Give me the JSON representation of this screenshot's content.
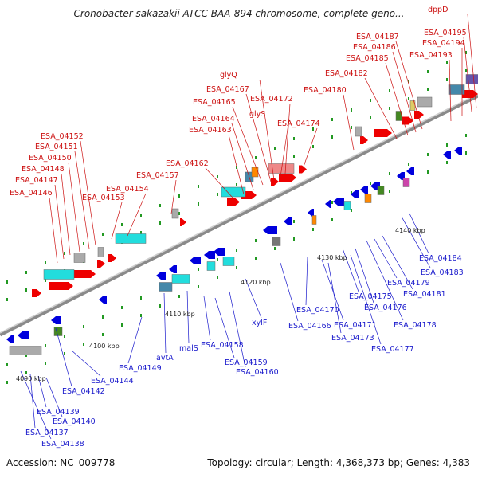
{
  "title": "Cronobacter sakazakii ATCC BAA-894 chromosome, complete geno...",
  "accession_text": "Accession: NC_009778",
  "summary_text": "Topology: circular; Length: 4,368,373 bp; Genes: 4,383",
  "colors": {
    "label_top": "#cc1111",
    "label_bottom": "#1a1acc",
    "backbone": "#8a8a8a",
    "gene_red": "#ee0000",
    "gene_blue": "#0000dd",
    "gene_cyan": "#22dddd",
    "gene_teal": "#4488aa",
    "gene_grey": "#aaaaaa",
    "gene_pink": "#ee8888",
    "gene_orange": "#ff8800",
    "gene_green": "#448822",
    "gene_purple": "#6655aa",
    "dot_green": "#229922"
  },
  "scale_ticks": [
    "4090 kbp",
    "4100 kbp",
    "4110 kbp",
    "4120 kbp",
    "4130 kbp",
    "4140 kbp"
  ],
  "top_labels": [
    "ESA_04146",
    "ESA_04147",
    "ESA_04148",
    "ESA_04150",
    "ESA_04151",
    "ESA_04152",
    "ESA_04153",
    "ESA_04154",
    "ESA_04157",
    "ESA_04162",
    "ESA_04163",
    "ESA_04164",
    "ESA_04165",
    "ESA_04167",
    "glyQ",
    "glyS",
    "ESA_04172",
    "ESA_04174",
    "ESA_04180",
    "ESA_04182",
    "ESA_04185",
    "ESA_04186",
    "ESA_04187",
    "ESA_04193",
    "ESA_04194",
    "ESA_04195",
    "dppD"
  ],
  "bottom_labels": [
    "ESA_04137",
    "ESA_04138",
    "ESA_04139",
    "ESA_04140",
    "ESA_04142",
    "ESA_04144",
    "ESA_04149",
    "avtA",
    "malS",
    "ESA_04158",
    "ESA_04159",
    "ESA_04160",
    "xylF",
    "ESA_04166",
    "ESA_04170",
    "ESA_04171",
    "ESA_04173",
    "ESA_04175",
    "ESA_04176",
    "ESA_04177",
    "ESA_04178",
    "ESA_04179",
    "ESA_04181",
    "ESA_04183",
    "ESA_04184"
  ]
}
